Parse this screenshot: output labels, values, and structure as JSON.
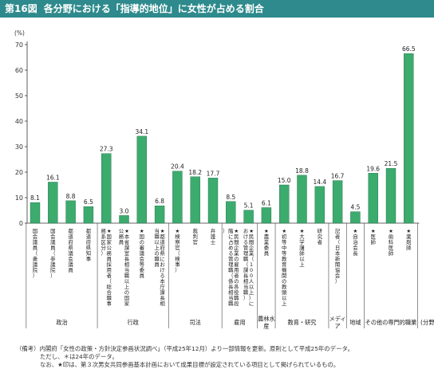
{
  "figure": {
    "number": "第16図",
    "title": "各分野における「指導的地位」に女性が占める割合"
  },
  "chart_data": {
    "type": "bar",
    "unit": "(%)",
    "ylim": [
      0,
      70
    ],
    "yticks": [
      0,
      10,
      20,
      30,
      40,
      50,
      60,
      70
    ],
    "grid": false,
    "bar_color": "#3cab6e",
    "bars": [
      {
        "label": "国会議員（衆議院）",
        "value": 8.1,
        "star": false
      },
      {
        "label": "国会議員（参議院）",
        "value": 16.1,
        "star": false
      },
      {
        "label": "都道府県議会議員",
        "value": 8.8,
        "star": false
      },
      {
        "label": "都道府県知事",
        "value": 6.5,
        "star": false
      },
      {
        "label": "国家公務員採用者（総合職事務系区分）",
        "value": 27.3,
        "star": true
      },
      {
        "label": "本省課室長相当職以上の国家公務員",
        "value": 3.0,
        "star": true
      },
      {
        "label": "国の審議会等委員",
        "value": 34.1,
        "star": true
      },
      {
        "label": "都道府県における本庁課長相当職以上の職員",
        "value": 6.8,
        "star": true
      },
      {
        "label": "検察官（検事）",
        "value": 20.4,
        "star": true
      },
      {
        "label": "裁判官",
        "value": 18.2,
        "star": false
      },
      {
        "label": "弁護士",
        "value": 17.7,
        "star": false
      },
      {
        "label": "民間企業の雇用者の各役職段階に占める管理職（係長相当職）",
        "value": 8.5,
        "star": true
      },
      {
        "label": "民間企業（100人以上）における管理職（課長相当職）",
        "value": 5.1,
        "star": true
      },
      {
        "label": "農業委員",
        "value": 6.1,
        "star": true
      },
      {
        "label": "初等中等教育機関の教頭以上",
        "value": 15.0,
        "star": true
      },
      {
        "label": "大学講師以上",
        "value": 18.8,
        "star": true
      },
      {
        "label": "研究者",
        "value": 14.4,
        "star": false
      },
      {
        "label": "記者（日本新聞協会）",
        "value": 16.7,
        "star": false
      },
      {
        "label": "自治会長",
        "value": 4.5,
        "star": true
      },
      {
        "label": "医師",
        "value": 19.6,
        "star": true
      },
      {
        "label": "歯科医師",
        "value": 21.5,
        "star": true
      },
      {
        "label": "薬剤師",
        "value": 66.5,
        "star": true
      }
    ],
    "groups": [
      {
        "name": "政治",
        "from": 0,
        "to": 3
      },
      {
        "name": "行政",
        "from": 4,
        "to": 7
      },
      {
        "name": "司法",
        "from": 8,
        "to": 10
      },
      {
        "name": "雇用",
        "from": 11,
        "to": 12
      },
      {
        "name": "農林水産",
        "from": 13,
        "to": 13
      },
      {
        "name": "教育・研究",
        "from": 14,
        "to": 16
      },
      {
        "name": "メディア",
        "from": 17,
        "to": 17
      },
      {
        "name": "地域",
        "from": 18,
        "to": 18
      },
      {
        "name": "その他の専門的職業",
        "from": 19,
        "to": 21
      }
    ],
    "category_axis_label": "(分野)"
  },
  "notes": [
    "（備考）内閣府「女性の政策・方針決定参画状況調べ」（平成25年12月）より一部情報を更新。原則として平成25年のデータ。",
    "ただし、＊は24年のデータ。",
    "なお、★印は、第３次男女共同参画基本計画において成果目標が設定されている項目として掲げられているもの。"
  ]
}
